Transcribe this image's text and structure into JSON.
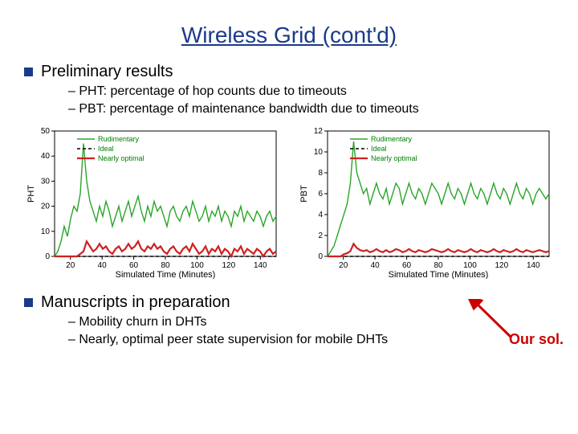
{
  "title": "Wireless Grid (cont'd)",
  "section1": {
    "heading": "Preliminary results",
    "sub1": "–  PHT: percentage of hop counts due to timeouts",
    "sub2": "–  PBT: percentage of maintenance bandwidth due to timeouts"
  },
  "section2": {
    "heading": "Manuscripts in preparation",
    "sub1": "–  Mobility churn in DHTs",
    "sub2": "–  Nearly, optimal peer state supervision for mobile DHTs"
  },
  "callout": "Our sol.",
  "chart_left": {
    "type": "line",
    "ylabel": "PHT",
    "xlabel": "Simulated Time (Minutes)",
    "ylim": [
      0,
      50
    ],
    "ytick_step": 10,
    "xlim": [
      10,
      150
    ],
    "xticks": [
      20,
      40,
      60,
      80,
      100,
      120,
      140
    ],
    "legend": [
      "Rudimentary",
      "Ideal",
      "Nearly optimal"
    ],
    "legend_styles": [
      "solid-green",
      "dash-black",
      "solid-red"
    ],
    "colors": {
      "rudimentary": "#2aa52a",
      "ideal": "#000000",
      "nearly": "#d02020",
      "grid": "#d0d0d0",
      "bg": "#ffffff"
    },
    "line_width": 1.4,
    "nearly_line_width": 2.2,
    "series": {
      "rudimentary": [
        0,
        2,
        6,
        12,
        8,
        15,
        20,
        18,
        25,
        45,
        30,
        22,
        18,
        14,
        20,
        16,
        22,
        18,
        12,
        16,
        20,
        14,
        18,
        22,
        16,
        20,
        24,
        18,
        14,
        20,
        16,
        22,
        18,
        20,
        16,
        12,
        18,
        20,
        16,
        14,
        18,
        20,
        16,
        22,
        18,
        14,
        16,
        20,
        14,
        18,
        16,
        20,
        14,
        18,
        16,
        12,
        18,
        16,
        20,
        14,
        18,
        16,
        14,
        18,
        16,
        12,
        16,
        18,
        14,
        16
      ],
      "nearly": [
        0,
        0,
        0,
        0,
        0,
        0,
        0,
        0,
        1,
        2,
        6,
        4,
        2,
        3,
        5,
        3,
        4,
        2,
        1,
        3,
        4,
        2,
        3,
        5,
        3,
        4,
        6,
        3,
        2,
        4,
        3,
        5,
        3,
        4,
        2,
        1,
        3,
        4,
        2,
        1,
        3,
        4,
        2,
        5,
        3,
        1,
        2,
        4,
        1,
        3,
        2,
        4,
        1,
        3,
        2,
        0,
        3,
        2,
        4,
        1,
        3,
        2,
        1,
        3,
        2,
        0,
        2,
        3,
        1,
        2
      ]
    }
  },
  "chart_right": {
    "type": "line",
    "ylabel": "PBT",
    "xlabel": "Simulated Time (Minutes)",
    "ylim": [
      0,
      12
    ],
    "ytick_step": 2,
    "xlim": [
      10,
      150
    ],
    "xticks": [
      20,
      40,
      60,
      80,
      100,
      120,
      140
    ],
    "legend": [
      "Rudimentary",
      "Ideal",
      "Nearly optimal"
    ],
    "legend_styles": [
      "solid-green",
      "dash-black",
      "solid-red"
    ],
    "colors": {
      "rudimentary": "#2aa52a",
      "ideal": "#000000",
      "nearly": "#d02020",
      "grid": "#d0d0d0",
      "bg": "#ffffff"
    },
    "line_width": 1.4,
    "nearly_line_width": 2.2,
    "series": {
      "rudimentary": [
        0,
        0.5,
        1,
        2,
        3,
        4,
        5,
        7,
        11,
        8,
        7,
        6,
        6.5,
        5,
        6,
        7,
        6,
        5.5,
        6.5,
        5,
        6,
        7,
        6.5,
        5,
        6,
        7,
        6,
        5.5,
        6.5,
        6,
        5,
        6,
        7,
        6.5,
        6,
        5,
        6,
        7,
        6,
        5.5,
        6.5,
        6,
        5,
        6,
        7,
        6,
        5.5,
        6.5,
        6,
        5,
        6,
        7,
        6,
        5.5,
        6.5,
        6,
        5,
        6,
        7,
        6,
        5.5,
        6.5,
        6,
        5,
        6,
        6.5,
        6,
        5.5,
        6
      ],
      "nearly": [
        0,
        0,
        0,
        0,
        0,
        0.2,
        0.3,
        0.5,
        1.2,
        0.8,
        0.6,
        0.5,
        0.6,
        0.4,
        0.5,
        0.7,
        0.5,
        0.4,
        0.6,
        0.4,
        0.5,
        0.7,
        0.6,
        0.4,
        0.5,
        0.7,
        0.5,
        0.4,
        0.6,
        0.5,
        0.4,
        0.5,
        0.7,
        0.6,
        0.5,
        0.4,
        0.5,
        0.7,
        0.5,
        0.4,
        0.6,
        0.5,
        0.4,
        0.5,
        0.7,
        0.5,
        0.4,
        0.6,
        0.5,
        0.4,
        0.5,
        0.7,
        0.5,
        0.4,
        0.6,
        0.5,
        0.4,
        0.5,
        0.7,
        0.5,
        0.4,
        0.6,
        0.5,
        0.4,
        0.5,
        0.6,
        0.5,
        0.4,
        0.5
      ]
    }
  }
}
